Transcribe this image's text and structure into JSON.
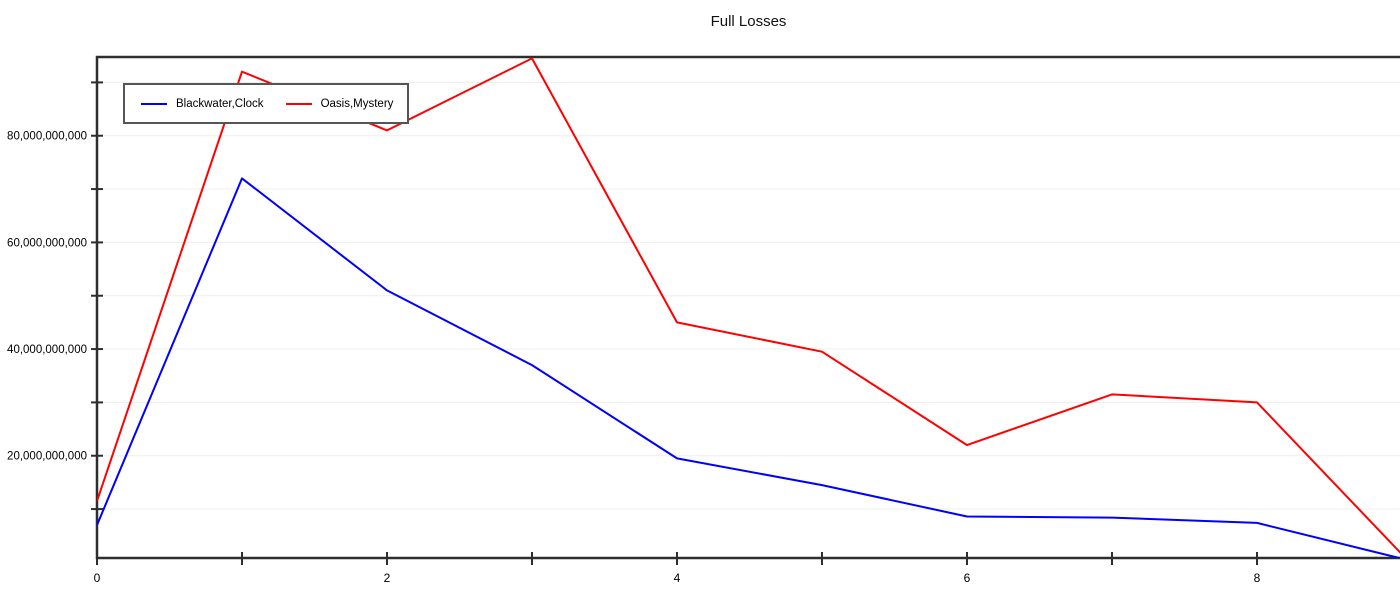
{
  "chart_data": {
    "type": "line",
    "title": "Full Losses",
    "xlabel": "",
    "ylabel": "",
    "x": [
      0,
      1,
      2,
      3,
      4,
      5,
      6,
      7,
      8,
      9
    ],
    "series": [
      {
        "name": "Blackwater,Clock",
        "color": "#0000ff",
        "values": [
          7000000000,
          72000000000,
          51000000000,
          37000000000,
          19500000000,
          14500000000,
          8600000000,
          8400000000,
          7400000000,
          700000000
        ]
      },
      {
        "name": "Oasis,Mystery",
        "color": "#ff0000",
        "values": [
          11500000000,
          92000000000,
          81000000000,
          94500000000,
          45000000000,
          39500000000,
          22000000000,
          31500000000,
          30000000000,
          1500000000
        ]
      }
    ],
    "ylim": [
      0,
      95000000000
    ],
    "ytick_step": 10000000000,
    "yticks_labeled": [
      20000000000,
      40000000000,
      60000000000,
      80000000000
    ],
    "ytick_labels": [
      "20,000,000,000",
      "40,000,000,000",
      "60,000,000,000",
      "80,000,000,000"
    ],
    "xticks_labeled": [
      0,
      2,
      4,
      6,
      8
    ],
    "xtick_labels": [
      "0",
      "2",
      "4",
      "6",
      "8"
    ],
    "grid": "horizontal",
    "legend_position": "top-left",
    "colors": {
      "axis": "#2e2e2e",
      "gridline": "#f0f0f0",
      "text": "#000000",
      "legend_border": "#555555",
      "background": "#ffffff"
    }
  }
}
